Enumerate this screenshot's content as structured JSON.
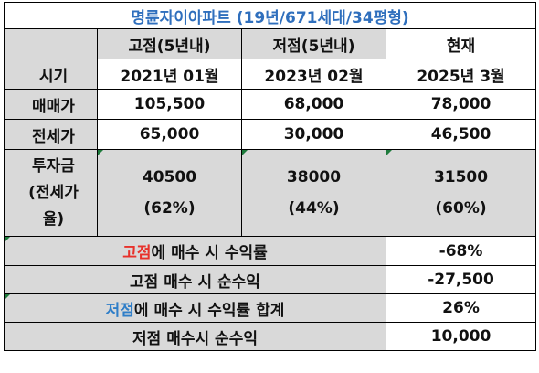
{
  "title": "명륜자이아파트 (19년/671세대/34평형)",
  "columns": {
    "high": "고점(5년내)",
    "low": "저점(5년내)",
    "now": "현재"
  },
  "rows": {
    "period": {
      "label": "시기",
      "high": "2021년 01월",
      "low": "2023년 02월",
      "now": "2025년 3월"
    },
    "sale": {
      "label": "매매가",
      "high": "105,500",
      "low": "68,000",
      "now": "78,000"
    },
    "jeonse": {
      "label": "전세가",
      "high": "65,000",
      "low": "30,000",
      "now": "46,500"
    },
    "invest": {
      "label_lines": [
        "투자금",
        "(전세가",
        "율)"
      ],
      "high": "40500",
      "high_ratio": "(62%)",
      "low": "38000",
      "low_ratio": "(44%)",
      "now": "31500",
      "now_ratio": "(60%)"
    }
  },
  "summary": [
    {
      "prefix": "고점",
      "prefix_color": "red",
      "rest": "에 매수 시 수익률",
      "value": "-68%"
    },
    {
      "prefix": "",
      "prefix_color": "",
      "rest": "고점 매수 시 순수익",
      "value": "-27,500"
    },
    {
      "prefix": "저점",
      "prefix_color": "blue",
      "rest": "에 매수 시 수익률 합계",
      "value": "26%"
    },
    {
      "prefix": "",
      "prefix_color": "",
      "rest": "저점 매수시 순수익",
      "value": "10,000"
    }
  ],
  "colors": {
    "red": "#e8312b",
    "blue": "#2f7ec8",
    "grey": "#d9d9d9",
    "title": "#2f6fbd",
    "flag": "#1e7b3c"
  }
}
